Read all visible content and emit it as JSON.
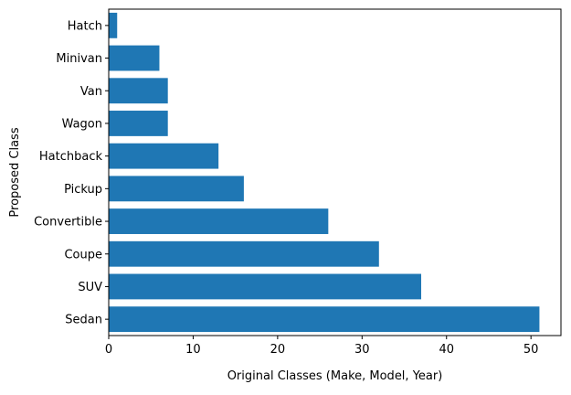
{
  "chart_data": {
    "type": "bar",
    "orientation": "horizontal",
    "categories": [
      "Sedan",
      "SUV",
      "Coupe",
      "Convertible",
      "Pickup",
      "Hatchback",
      "Wagon",
      "Van",
      "Minivan",
      "Hatch"
    ],
    "values": [
      51,
      37,
      32,
      26,
      16,
      13,
      7,
      7,
      6,
      1
    ],
    "title": "",
    "xlabel": "Original Classes (Make, Model, Year)",
    "ylabel": "Proposed Class",
    "xlim": [
      0,
      53.55
    ],
    "xticks": [
      0,
      10,
      20,
      30,
      40,
      50
    ],
    "grid": false,
    "bar_color": "#1f77b4"
  }
}
